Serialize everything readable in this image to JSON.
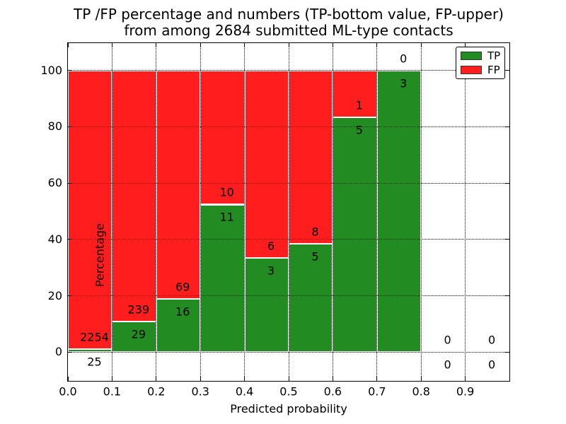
{
  "title": {
    "line1": "TP /FP percentage and numbers (TP-bottom value, FP-upper)",
    "line2": "from among 2684 submitted ML-type contacts"
  },
  "colors": {
    "tp_green": "#228b22",
    "fp_red": "#ff1d1d",
    "grid": "#000000",
    "background": "#ffffff"
  },
  "chart_data": {
    "type": "bar",
    "stacked": true,
    "normalized_to_percent": true,
    "title": "TP /FP percentage and numbers (TP-bottom value, FP-upper)\nfrom among 2684 submitted ML-type contacts",
    "total_contacts": 2684,
    "xlabel": "Predicted probability",
    "ylabel": "Percentage",
    "xlim": [
      0.0,
      1.0
    ],
    "ylim": [
      -10.2,
      109.7
    ],
    "x_ticks": [
      "0.0",
      "0.1",
      "0.2",
      "0.3",
      "0.4",
      "0.5",
      "0.6",
      "0.7",
      "0.8",
      "0.9"
    ],
    "y_ticks": [
      0,
      20,
      40,
      60,
      80,
      100
    ],
    "grid": "dotted",
    "bar_width": 0.1,
    "annotation_note": "TP-bottom value, FP-upper",
    "legend": {
      "position": "upper right",
      "entries": [
        {
          "label": "TP",
          "color": "#228b22"
        },
        {
          "label": "FP",
          "color": "#ff1d1d"
        }
      ]
    },
    "bins": [
      {
        "range": [
          0.0,
          0.1
        ],
        "tp": 25,
        "fp": 2254,
        "tp_pct": 1.1,
        "fp_pct": 98.9
      },
      {
        "range": [
          0.1,
          0.2
        ],
        "tp": 29,
        "fp": 239,
        "tp_pct": 10.8,
        "fp_pct": 89.2
      },
      {
        "range": [
          0.2,
          0.3
        ],
        "tp": 16,
        "fp": 69,
        "tp_pct": 18.8,
        "fp_pct": 81.2
      },
      {
        "range": [
          0.3,
          0.4
        ],
        "tp": 11,
        "fp": 10,
        "tp_pct": 52.4,
        "fp_pct": 47.6
      },
      {
        "range": [
          0.4,
          0.5
        ],
        "tp": 3,
        "fp": 6,
        "tp_pct": 33.3,
        "fp_pct": 66.7
      },
      {
        "range": [
          0.5,
          0.6
        ],
        "tp": 5,
        "fp": 8,
        "tp_pct": 38.5,
        "fp_pct": 61.5
      },
      {
        "range": [
          0.6,
          0.7
        ],
        "tp": 5,
        "fp": 1,
        "tp_pct": 83.3,
        "fp_pct": 16.7
      },
      {
        "range": [
          0.7,
          0.8
        ],
        "tp": 3,
        "fp": 0,
        "tp_pct": 100.0,
        "fp_pct": 0.0
      },
      {
        "range": [
          0.8,
          0.9
        ],
        "tp": 0,
        "fp": 0,
        "tp_pct": 0.0,
        "fp_pct": 0.0
      },
      {
        "range": [
          0.9,
          1.0
        ],
        "tp": 0,
        "fp": 0,
        "tp_pct": 0.0,
        "fp_pct": 0.0
      }
    ]
  }
}
